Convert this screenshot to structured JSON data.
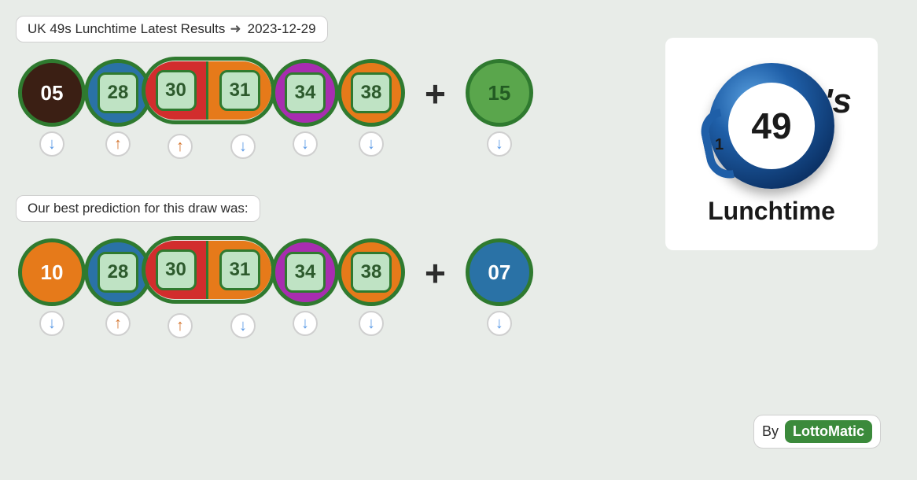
{
  "header": {
    "title": "UK 49s Lunchtime Latest Results",
    "date": "2023-12-29"
  },
  "prediction_label": "Our best prediction for this draw was:",
  "plus_symbol": "+",
  "credit": {
    "by": "By",
    "brand": "LottoMatic"
  },
  "logo": {
    "big": "49",
    "apos": "'s",
    "side": "1",
    "label": "Lunchtime"
  },
  "style": {
    "ball_border_color": "#2f7a2f",
    "ball_border_width": 5,
    "plate_bg": "#bfe3c4",
    "plate_border": "#2f7a2f",
    "plate_text": "#2d5a2d",
    "trend_down_color": "#5a9ae6",
    "trend_up_color": "#d4722a",
    "trend_down_glyph": "↓",
    "trend_up_glyph": "↑"
  },
  "results": {
    "main": [
      {
        "n": "05",
        "fill": "#3b1f14",
        "text_on_ball": true,
        "trend": "down"
      },
      {
        "n": "28",
        "fill": "#2a72a6",
        "plate": true,
        "trend": "up"
      },
      {
        "pill": true,
        "border": "#2f7a2f",
        "halves": [
          {
            "n": "30",
            "fill": "#d22d2d",
            "plate": true,
            "trend": "up"
          },
          {
            "n": "31",
            "fill": "#e67a1a",
            "plate": true,
            "trend": "down"
          }
        ]
      },
      {
        "n": "34",
        "fill": "#a82db0",
        "plate": true,
        "trend": "down"
      },
      {
        "n": "38",
        "fill": "#e67a1a",
        "plate": true,
        "trend": "down"
      }
    ],
    "bonus": {
      "n": "15",
      "fill": "#5aa64c",
      "text_on_ball": true,
      "text_color": "#235c23",
      "trend": "down"
    }
  },
  "prediction": {
    "main": [
      {
        "n": "10",
        "fill": "#e67a1a",
        "text_on_ball": true,
        "trend": "down"
      },
      {
        "n": "28",
        "fill": "#2a72a6",
        "plate": true,
        "trend": "up"
      },
      {
        "pill": true,
        "border": "#2f7a2f",
        "halves": [
          {
            "n": "30",
            "fill": "#d22d2d",
            "plate": true,
            "trend": "up"
          },
          {
            "n": "31",
            "fill": "#e67a1a",
            "plate": true,
            "trend": "down"
          }
        ]
      },
      {
        "n": "34",
        "fill": "#a82db0",
        "plate": true,
        "trend": "down"
      },
      {
        "n": "38",
        "fill": "#e67a1a",
        "plate": true,
        "trend": "down"
      }
    ],
    "bonus": {
      "n": "07",
      "fill": "#2a72a6",
      "text_on_ball": true,
      "trend": "down"
    }
  }
}
